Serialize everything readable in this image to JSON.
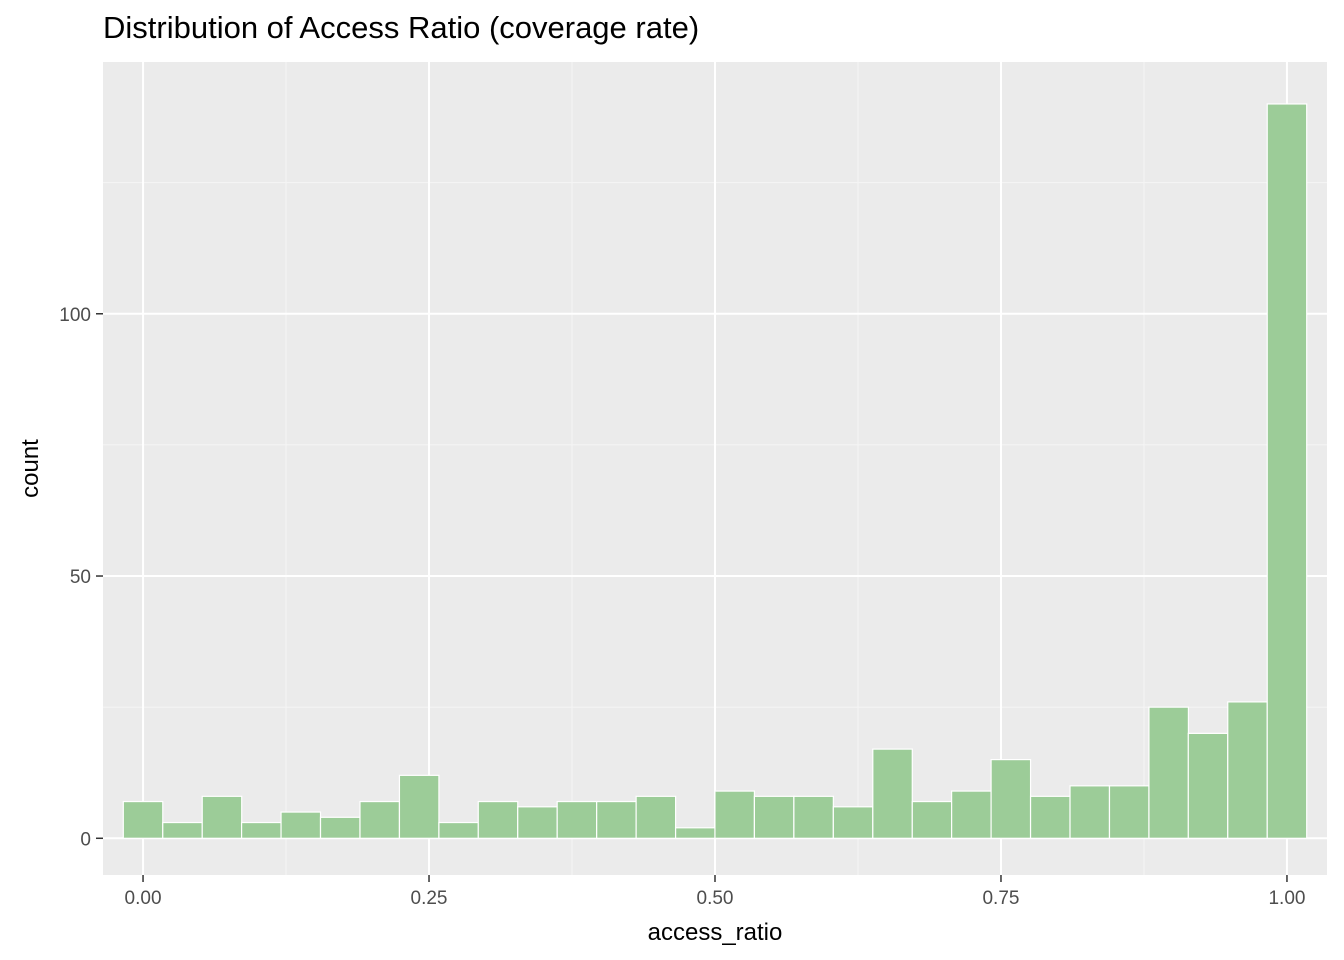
{
  "chart_data": {
    "type": "bar",
    "title": "Distribution of Access Ratio (coverage rate)",
    "xlabel": "access_ratio",
    "ylabel": "count",
    "xlim": [
      -0.035,
      1.035
    ],
    "ylim": [
      -7,
      148
    ],
    "x_ticks": [
      0.0,
      0.25,
      0.5,
      0.75,
      1.0
    ],
    "x_tick_labels": [
      "0.00",
      "0.25",
      "0.50",
      "0.75",
      "1.00"
    ],
    "y_ticks": [
      0,
      50,
      100
    ],
    "y_tick_labels": [
      "0",
      "50",
      "100"
    ],
    "grid": true,
    "bin_width": 0.0345,
    "bin_centers": [
      0.0,
      0.0345,
      0.069,
      0.1034,
      0.1379,
      0.1724,
      0.2069,
      0.2414,
      0.2759,
      0.3103,
      0.3448,
      0.3793,
      0.4138,
      0.4483,
      0.4828,
      0.5172,
      0.5517,
      0.5862,
      0.6207,
      0.6552,
      0.6897,
      0.7241,
      0.7586,
      0.7931,
      0.8276,
      0.8621,
      0.8966,
      0.931,
      0.9655,
      1.0
    ],
    "values": [
      7,
      3,
      8,
      3,
      5,
      4,
      7,
      12,
      3,
      7,
      6,
      7,
      7,
      8,
      2,
      9,
      8,
      8,
      6,
      17,
      7,
      9,
      15,
      8,
      10,
      10,
      25,
      20,
      26,
      140
    ],
    "colors": {
      "panel": "#ebebeb",
      "grid_major": "#ffffff",
      "grid_minor": "#f5f5f5",
      "bar_fill": "#9ccc98",
      "bar_outline": "#ffffff",
      "tick_mark": "#333333",
      "tick_label": "#4d4d4d"
    }
  }
}
